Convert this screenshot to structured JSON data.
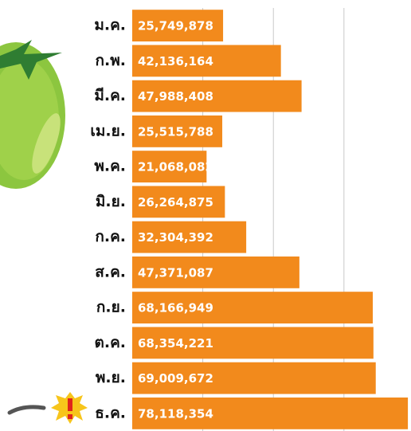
{
  "chart_data": {
    "type": "barh",
    "categories": [
      "ม.ค.",
      "ก.พ.",
      "มี.ค.",
      "เม.ย.",
      "พ.ค.",
      "มิ.ย.",
      "ก.ค.",
      "ส.ค.",
      "ก.ย.",
      "ต.ค.",
      "พ.ย.",
      "ธ.ค."
    ],
    "values": [
      25749878,
      42136164,
      47988408,
      25515788,
      21068082,
      26264875,
      32304392,
      47371087,
      68166949,
      68354221,
      69009672,
      78118354
    ],
    "value_labels": [
      "25,749,878",
      "42,136,164",
      "47,988,408",
      "25,515,788",
      "21,068,082",
      "26,264,875",
      "32,304,392",
      "47,371,087",
      "68,166,949",
      "68,354,221",
      "69,009,672",
      "78,118,354"
    ],
    "color": "#f28a1c",
    "xlim": [
      0,
      79000000
    ],
    "xticks": [
      20000000,
      40000000,
      60000000
    ],
    "tick_labels": false,
    "grid": true
  }
}
